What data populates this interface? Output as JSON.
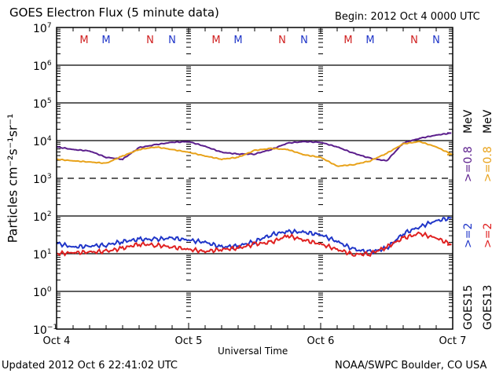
{
  "header": {
    "title": "GOES Electron Flux (5 minute data)",
    "begin": "Begin: 2012 Oct 4 0000 UTC"
  },
  "footer": {
    "updated": "Updated 2012 Oct  6 22:41:02 UTC",
    "credit": "NOAA/SWPC Boulder, CO USA"
  },
  "right_labels": {
    "col1": [
      {
        "text": "GOES15",
        "color": "#000000"
      },
      {
        "text": ">=2",
        "color": "#1f35c8"
      },
      {
        "text": ">=0.8",
        "color": "#5b1e8c"
      },
      {
        "text": "MeV",
        "color": "#000000"
      }
    ],
    "col2": [
      {
        "text": "GOES13",
        "color": "#000000"
      },
      {
        "text": ">=2",
        "color": "#e02020"
      },
      {
        "text": ">=0.8",
        "color": "#e8a21a"
      },
      {
        "text": "MeV",
        "color": "#000000"
      }
    ]
  },
  "chart_data": {
    "type": "line",
    "title": "GOES Electron Flux (5 minute data)",
    "xlabel": "Universal Time",
    "ylabel": "Particles cm⁻²s⁻¹sr⁻¹",
    "yscale": "log",
    "ylim": [
      0.1,
      10000000
    ],
    "xlim_hours": [
      0,
      72
    ],
    "x_tick_labels": [
      "Oct 4",
      "Oct 5",
      "Oct 6",
      "Oct 7"
    ],
    "y_tick_labels": [
      {
        "base": "10",
        "exp": "7"
      },
      {
        "base": "10",
        "exp": "6"
      },
      {
        "base": "10",
        "exp": "5"
      },
      {
        "base": "10",
        "exp": "4"
      },
      {
        "base": "10",
        "exp": "3"
      },
      {
        "base": "10",
        "exp": "2"
      },
      {
        "base": "10",
        "exp": "1"
      },
      {
        "base": "10",
        "exp": "0"
      },
      {
        "base": "10",
        "exp": "−1"
      }
    ],
    "dashed_reference": 1000,
    "x_hours": [
      0,
      3,
      6,
      9,
      12,
      15,
      18,
      21,
      24,
      27,
      30,
      33,
      36,
      39,
      42,
      45,
      48,
      51,
      54,
      57,
      60,
      63,
      66,
      69,
      72
    ],
    "series": [
      {
        "name": "GOES15 >=0.8 MeV",
        "color": "#5b1e8c",
        "values": [
          6800,
          5800,
          5300,
          3600,
          3200,
          6500,
          7800,
          9000,
          9400,
          7000,
          4900,
          4400,
          4400,
          5800,
          8600,
          9400,
          9000,
          6800,
          4600,
          3400,
          2900,
          8600,
          11500,
          14000,
          16000
        ]
      },
      {
        "name": "GOES13 >=0.8 MeV",
        "color": "#e8a21a",
        "values": [
          3200,
          2900,
          2700,
          2500,
          3900,
          5800,
          6800,
          5800,
          4900,
          3900,
          3200,
          3600,
          5500,
          6200,
          5800,
          4200,
          3600,
          2100,
          2300,
          2900,
          4600,
          8200,
          9400,
          6800,
          4200
        ]
      },
      {
        "name": "GOES15 >=2 MeV",
        "color": "#1f35c8",
        "values": [
          19,
          15,
          16,
          17,
          21,
          24,
          24,
          26,
          23,
          20,
          15,
          16,
          21,
          32,
          39,
          37,
          32,
          21,
          13,
          11,
          14,
          34,
          52,
          75,
          90
        ]
      },
      {
        "name": "GOES13 >=2 MeV",
        "color": "#e02020",
        "values": [
          10,
          10.6,
          11,
          11.5,
          14,
          18,
          17,
          15,
          13,
          11.5,
          13,
          14,
          18,
          20,
          30,
          23,
          18,
          13,
          9.5,
          10,
          15,
          26,
          34,
          26,
          17
        ]
      }
    ],
    "markers": [
      {
        "label": "M",
        "color": "#d02020",
        "hour": 5
      },
      {
        "label": "M",
        "color": "#1f35c8",
        "hour": 9
      },
      {
        "label": "N",
        "color": "#d02020",
        "hour": 17
      },
      {
        "label": "N",
        "color": "#1f35c8",
        "hour": 21
      },
      {
        "label": "M",
        "color": "#d02020",
        "hour": 29
      },
      {
        "label": "M",
        "color": "#1f35c8",
        "hour": 33
      },
      {
        "label": "N",
        "color": "#d02020",
        "hour": 41
      },
      {
        "label": "N",
        "color": "#1f35c8",
        "hour": 45
      },
      {
        "label": "M",
        "color": "#d02020",
        "hour": 53
      },
      {
        "label": "M",
        "color": "#1f35c8",
        "hour": 57
      },
      {
        "label": "N",
        "color": "#d02020",
        "hour": 65
      },
      {
        "label": "N",
        "color": "#1f35c8",
        "hour": 69
      }
    ]
  }
}
